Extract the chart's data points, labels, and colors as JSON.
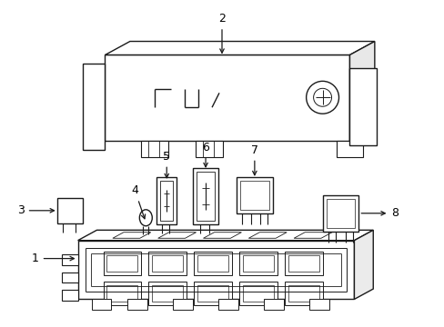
{
  "background_color": "#ffffff",
  "line_color": "#1a1a1a",
  "line_width": 1.0,
  "figsize": [
    4.89,
    3.6
  ],
  "dpi": 100
}
